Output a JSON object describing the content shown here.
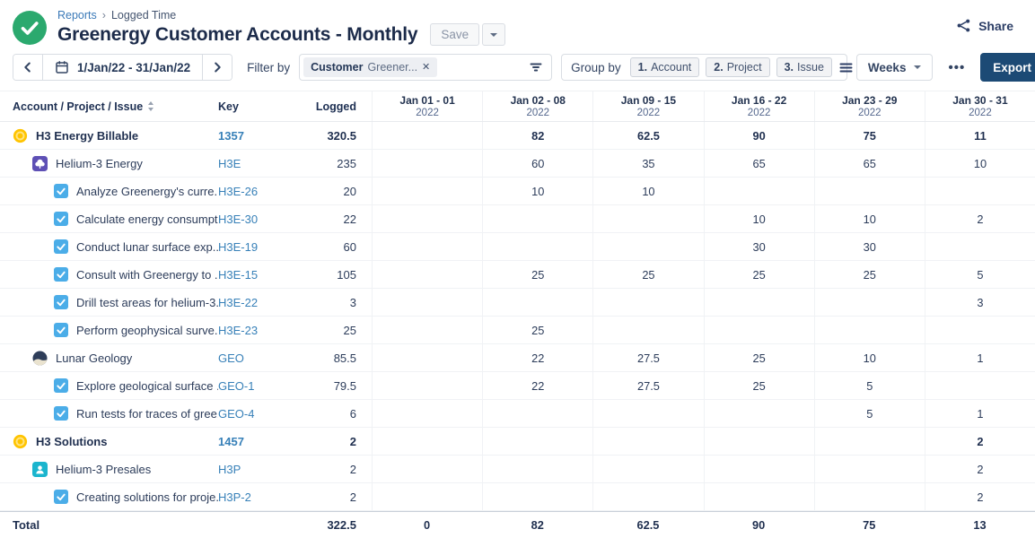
{
  "header": {
    "breadcrumb": {
      "link": "Reports",
      "separator": "›",
      "current": "Logged Time"
    },
    "title": "Greenergy Customer Accounts - Monthly",
    "save_label": "Save",
    "share_label": "Share"
  },
  "toolbar": {
    "date_range": "1/Jan/22 - 31/Jan/22",
    "filter": {
      "label": "Filter by",
      "chip": {
        "name": "Customer",
        "value": "Greener...",
        "close_glyph": "✕"
      }
    },
    "group_by": {
      "label": "Group by",
      "chips": [
        {
          "num": "1.",
          "label": "Account"
        },
        {
          "num": "2.",
          "label": "Project"
        },
        {
          "num": "3.",
          "label": "Issue"
        }
      ]
    },
    "period_label": "Weeks",
    "more_glyph": "•••",
    "export_label": "Export"
  },
  "table": {
    "columns": {
      "name": "Account / Project / Issue",
      "key": "Key",
      "logged": "Logged"
    },
    "week_headers": [
      {
        "range": "Jan 01 - 01",
        "year": "2022"
      },
      {
        "range": "Jan 02 - 08",
        "year": "2022"
      },
      {
        "range": "Jan 09 - 15",
        "year": "2022"
      },
      {
        "range": "Jan 16 - 22",
        "year": "2022"
      },
      {
        "range": "Jan 23 - 29",
        "year": "2022"
      },
      {
        "range": "Jan 30 - 31",
        "year": "2022"
      }
    ],
    "rows": [
      {
        "type": "account",
        "icon": "account-icon",
        "name": "H3 Energy Billable",
        "key": "1357",
        "logged": "320.5",
        "weeks": [
          "",
          "82",
          "62.5",
          "90",
          "75",
          "11"
        ]
      },
      {
        "type": "project",
        "icon": "energy-project-icon",
        "name": "Helium-3 Energy",
        "key": "H3E",
        "logged": "235",
        "weeks": [
          "",
          "60",
          "35",
          "65",
          "65",
          "10"
        ]
      },
      {
        "type": "issue",
        "icon": "task-icon",
        "name": "Analyze Greenergy's curre...",
        "key": "H3E-26",
        "logged": "20",
        "weeks": [
          "",
          "10",
          "10",
          "",
          "",
          ""
        ]
      },
      {
        "type": "issue",
        "icon": "task-icon",
        "name": "Calculate energy consumpt...",
        "key": "H3E-30",
        "logged": "22",
        "weeks": [
          "",
          "",
          "",
          "10",
          "10",
          "2"
        ]
      },
      {
        "type": "issue",
        "icon": "task-icon",
        "name": "Conduct lunar surface exp...",
        "key": "H3E-19",
        "logged": "60",
        "weeks": [
          "",
          "",
          "",
          "30",
          "30",
          ""
        ]
      },
      {
        "type": "issue",
        "icon": "task-icon",
        "name": "Consult with Greenergy to ...",
        "key": "H3E-15",
        "logged": "105",
        "weeks": [
          "",
          "25",
          "25",
          "25",
          "25",
          "5"
        ]
      },
      {
        "type": "issue",
        "icon": "task-icon",
        "name": "Drill test areas for helium-3...",
        "key": "H3E-22",
        "logged": "3",
        "weeks": [
          "",
          "",
          "",
          "",
          "",
          "3"
        ]
      },
      {
        "type": "issue",
        "icon": "task-icon",
        "name": "Perform geophysical surve...",
        "key": "H3E-23",
        "logged": "25",
        "weeks": [
          "",
          "25",
          "",
          "",
          "",
          ""
        ]
      },
      {
        "type": "project",
        "icon": "geology-project-icon",
        "name": "Lunar Geology",
        "key": "GEO",
        "logged": "85.5",
        "weeks": [
          "",
          "22",
          "27.5",
          "25",
          "10",
          "1"
        ]
      },
      {
        "type": "issue",
        "icon": "task-icon",
        "name": "Explore geological surface ...",
        "key": "GEO-1",
        "logged": "79.5",
        "weeks": [
          "",
          "22",
          "27.5",
          "25",
          "5",
          ""
        ]
      },
      {
        "type": "issue",
        "icon": "task-icon",
        "name": "Run tests for traces of gree...",
        "key": "GEO-4",
        "logged": "6",
        "weeks": [
          "",
          "",
          "",
          "",
          "5",
          "1"
        ]
      },
      {
        "type": "account",
        "icon": "account-icon",
        "name": "H3 Solutions",
        "key": "1457",
        "logged": "2",
        "weeks": [
          "",
          "",
          "",
          "",
          "",
          "2"
        ]
      },
      {
        "type": "project",
        "icon": "presales-project-icon",
        "name": "Helium-3 Presales",
        "key": "H3P",
        "logged": "2",
        "weeks": [
          "",
          "",
          "",
          "",
          "",
          "2"
        ]
      },
      {
        "type": "issue",
        "icon": "task-icon",
        "name": "Creating solutions for proje...",
        "key": "H3P-2",
        "logged": "2",
        "weeks": [
          "",
          "",
          "",
          "",
          "",
          "2"
        ]
      }
    ],
    "total": {
      "label": "Total",
      "logged": "322.5",
      "weeks": [
        "0",
        "82",
        "62.5",
        "90",
        "75",
        "13"
      ]
    }
  },
  "colors": {
    "accent_green": "#2BA96E",
    "link_blue": "#3780B8",
    "export_navy": "#1C4A75",
    "account_yellow": "#FFC400",
    "task_blue": "#4BADE8",
    "project_purple": "#5E50B5",
    "project_teal": "#1BB5CE"
  }
}
